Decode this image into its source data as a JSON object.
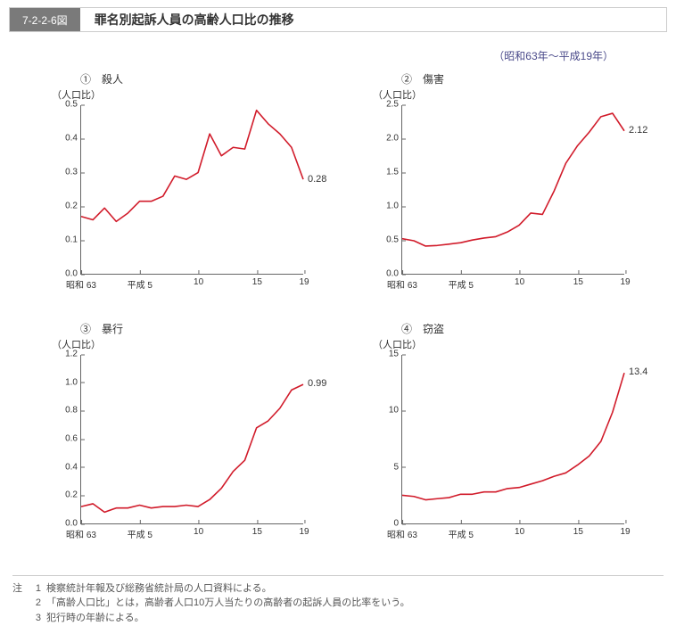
{
  "title_tag": "7-2-2-6図",
  "title_text": "罪名別起訴人員の高齢人口比の推移",
  "period": "（昭和63年～平成19年）",
  "ylabel": "（人口比）",
  "colors": {
    "line": "#d11b2a",
    "axis": "#666666",
    "text": "#333333",
    "title_bg": "#7a7a7a",
    "border": "#cccccc",
    "background": "#ffffff"
  },
  "line_width": 1.6,
  "font_family": "Hiragino Sans, Meiryo, sans-serif",
  "x_axis": {
    "start_year": 0,
    "end_year": 19,
    "tick_positions": [
      0,
      5,
      10,
      15,
      19
    ],
    "tick_labels": [
      "昭和 63",
      "平成 5",
      "10",
      "15",
      "19"
    ]
  },
  "charts": [
    {
      "num": "①",
      "name": "殺人",
      "ylim": [
        0,
        0.5
      ],
      "ytick_step": 0.1,
      "y_decimals": 1,
      "end_value_label": "0.28",
      "values": [
        0.17,
        0.16,
        0.195,
        0.155,
        0.18,
        0.215,
        0.215,
        0.23,
        0.29,
        0.28,
        0.3,
        0.415,
        0.35,
        0.375,
        0.37,
        0.485,
        0.445,
        0.415,
        0.375,
        0.28
      ]
    },
    {
      "num": "②",
      "name": "傷害",
      "ylim": [
        0,
        2.5
      ],
      "ytick_step": 0.5,
      "y_decimals": 1,
      "end_value_label": "2.12",
      "values": [
        0.52,
        0.49,
        0.41,
        0.42,
        0.44,
        0.46,
        0.5,
        0.53,
        0.55,
        0.62,
        0.72,
        0.9,
        0.88,
        1.23,
        1.64,
        1.9,
        2.1,
        2.33,
        2.38,
        2.12
      ]
    },
    {
      "num": "③",
      "name": "暴行",
      "ylim": [
        0,
        1.2
      ],
      "ytick_step": 0.2,
      "y_decimals": 1,
      "end_value_label": "0.99",
      "values": [
        0.12,
        0.14,
        0.08,
        0.11,
        0.11,
        0.13,
        0.11,
        0.12,
        0.12,
        0.13,
        0.12,
        0.17,
        0.25,
        0.37,
        0.45,
        0.68,
        0.73,
        0.82,
        0.95,
        0.99
      ]
    },
    {
      "num": "④",
      "name": "窃盗",
      "ylim": [
        0,
        15
      ],
      "ytick_step": 5,
      "y_decimals": 0,
      "end_value_label": "13.4",
      "values": [
        2.5,
        2.4,
        2.1,
        2.2,
        2.3,
        2.6,
        2.6,
        2.8,
        2.8,
        3.1,
        3.2,
        3.5,
        3.8,
        4.2,
        4.5,
        5.2,
        6.0,
        7.3,
        9.9,
        13.4
      ]
    }
  ],
  "footnote_label": "注",
  "footnotes": [
    "検察統計年報及び総務省統計局の人口資料による。",
    "「高齢人口比」とは，高齢者人口10万人当たりの高齢者の起訴人員の比率をいう。",
    "犯行時の年齢による。"
  ]
}
